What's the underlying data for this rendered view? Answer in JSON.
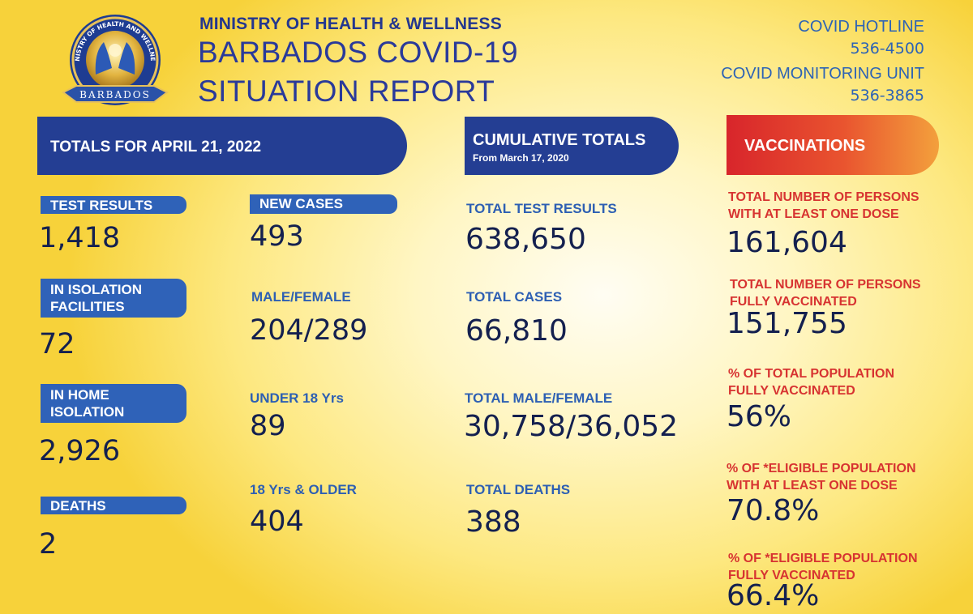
{
  "header": {
    "ministry": "MINISTRY OF HEALTH & WELLNESS",
    "title_line1": "BARBADOS COVID-19",
    "title_line2": "SITUATION REPORT",
    "logo_arc_text": "MINISTRY OF HEALTH AND WELLNESS",
    "logo_ribbon_text": "BARBADOS",
    "hotline_label": "COVID HOTLINE",
    "hotline_number": "536-4500",
    "monitoring_label": "COVID MONITORING UNIT",
    "monitoring_number": "536-3865"
  },
  "daily": {
    "banner": "TOTALS FOR APRIL 21, 2022",
    "test_results": {
      "label": "TEST RESULTS",
      "value": "1,418"
    },
    "isolation_facilities": {
      "label_line1": "IN ISOLATION",
      "label_line2": "FACILITIES",
      "value": "72"
    },
    "home_isolation": {
      "label_line1": "IN HOME",
      "label_line2": "ISOLATION",
      "value": "2,926"
    },
    "deaths": {
      "label": "DEATHS",
      "value": "2"
    },
    "new_cases": {
      "label": "NEW CASES",
      "value": "493"
    },
    "male_female": {
      "label": "MALE/FEMALE",
      "value": "204/289"
    },
    "under_18": {
      "label": "UNDER 18 Yrs",
      "value": "89"
    },
    "over_18": {
      "label": "18 Yrs & OLDER",
      "value": "404"
    }
  },
  "cumulative": {
    "banner": "CUMULATIVE TOTALS",
    "subtitle": "From March 17, 2020",
    "test_results": {
      "label": "TOTAL TEST RESULTS",
      "value": "638,650"
    },
    "cases": {
      "label": "TOTAL CASES",
      "value": "66,810"
    },
    "male_female": {
      "label": "TOTAL MALE/FEMALE",
      "value": "30,758/36,052"
    },
    "deaths": {
      "label": "TOTAL DEATHS",
      "value": "388"
    }
  },
  "vaccinations": {
    "banner": "VACCINATIONS",
    "one_dose": {
      "label_line1": "TOTAL NUMBER OF PERSONS",
      "label_line2": "WITH AT LEAST ONE DOSE",
      "value": "161,604"
    },
    "fully": {
      "label_line1": "TOTAL NUMBER OF PERSONS",
      "label_line2": "FULLY VACCINATED",
      "value": "151,755"
    },
    "pct_total_fully": {
      "label_line1": "% OF TOTAL POPULATION",
      "label_line2": "FULLY VACCINATED",
      "value": "56%"
    },
    "pct_eligible_one_dose": {
      "label_line1": "% OF *ELIGIBLE POPULATION",
      "label_line2": "WITH AT LEAST ONE DOSE",
      "value": "70.8%"
    },
    "pct_eligible_fully": {
      "label_line1": "% OF *ELIGIBLE POPULATION",
      "label_line2": "FULLY VACCINATED",
      "value": "66.4%"
    }
  },
  "colors": {
    "navy": "#243e93",
    "pill_blue": "#2f62b8",
    "label_blue": "#2d5fb3",
    "vacc_red": "#d73331",
    "value_dark": "#14204f"
  }
}
